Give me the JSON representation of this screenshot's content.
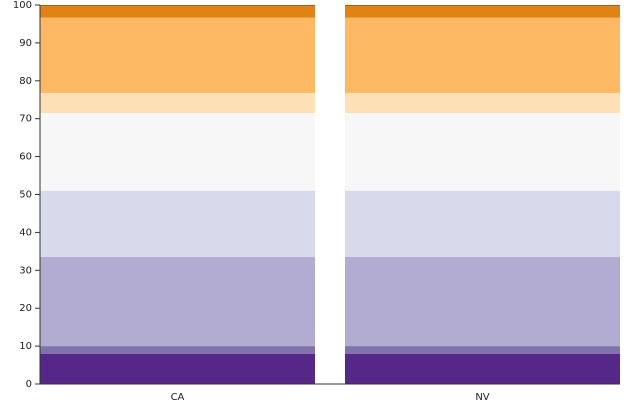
{
  "chart_data": {
    "type": "stacked_bar",
    "categories": [
      "CA",
      "NV"
    ],
    "series": [
      {
        "color": "#542788",
        "values": [
          8,
          8
        ]
      },
      {
        "color": "#8073ac",
        "values": [
          2,
          2
        ]
      },
      {
        "color": "#b2abd2",
        "values": [
          23.5,
          23.5
        ]
      },
      {
        "color": "#d8daeb",
        "values": [
          17.5,
          17.5
        ]
      },
      {
        "color": "#f7f7f7",
        "values": [
          20.5,
          20.5
        ]
      },
      {
        "color": "#fee0b6",
        "values": [
          5.3,
          5.3
        ]
      },
      {
        "color": "#fdb863",
        "values": [
          19.9,
          19.9
        ]
      },
      {
        "color": "#e08214",
        "values": [
          3,
          3
        ]
      },
      {
        "color": "#b35806",
        "values": [
          0.3,
          0.3
        ]
      }
    ],
    "ylim": [
      0,
      100
    ],
    "yticks": [
      0,
      10,
      20,
      30,
      40,
      50,
      60,
      70,
      80,
      90,
      100
    ]
  }
}
